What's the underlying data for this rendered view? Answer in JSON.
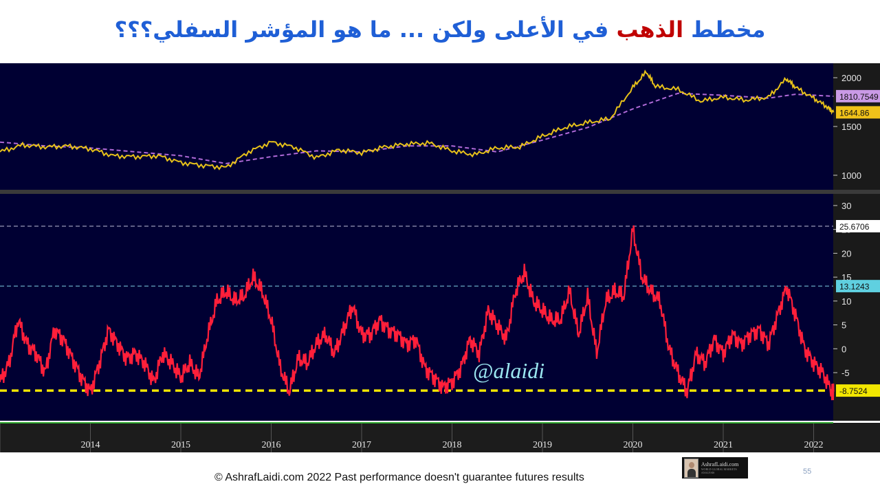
{
  "title": {
    "part1": "مخطط ",
    "part2": "الذهب",
    "part3": " في الأعلى ولكن ... ما هو المؤشر السفلي؟؟؟"
  },
  "footer": "© AshrafLaidi.com 2022 Past performance doesn't guarantee futures results",
  "page_number": "55",
  "logo_text": "AshrafLaidi.com",
  "colors": {
    "background": "#000033",
    "gold": "#e8c21a",
    "ma": "#b06ad8",
    "indicator": "#ff1f3a",
    "yellow_line": "#f2e600",
    "title_blue": "#1f5fd6",
    "title_red": "#c00000"
  },
  "chart_data": [
    {
      "type": "line",
      "title": "",
      "series": [
        {
          "name": "",
          "x": [
            2013.5,
            2013.75,
            2014.0,
            2014.25,
            2014.5,
            2014.75,
            2015.0,
            2015.25,
            2015.5,
            2015.75,
            2016.0,
            2016.25,
            2016.5,
            2016.75,
            2017.0,
            2017.25,
            2017.5,
            2017.75,
            2018.0,
            2018.25,
            2018.5,
            2018.75,
            2019.0,
            2019.25,
            2019.5,
            2019.75,
            2020.0,
            2020.25,
            2020.5,
            2020.65,
            2020.75,
            2021.0,
            2021.25,
            2021.5,
            2021.75,
            2022.0,
            2022.2,
            2022.3,
            2022.5,
            2022.65,
            2022.72
          ],
          "values": [
            1240,
            1310,
            1290,
            1300,
            1270,
            1200,
            1190,
            1200,
            1130,
            1100,
            1080,
            1240,
            1340,
            1290,
            1180,
            1260,
            1230,
            1290,
            1320,
            1330,
            1250,
            1210,
            1280,
            1290,
            1400,
            1490,
            1540,
            1580,
            1900,
            2060,
            1910,
            1880,
            1760,
            1800,
            1770,
            1800,
            1990,
            1900,
            1790,
            1700,
            1645
          ]
        },
        {
          "name": "",
          "x": [
            2013.5,
            2014.0,
            2014.5,
            2015.0,
            2015.5,
            2016.0,
            2016.5,
            2017.0,
            2017.5,
            2018.0,
            2018.5,
            2019.0,
            2019.5,
            2020.0,
            2020.5,
            2021.0,
            2021.5,
            2022.0,
            2022.3,
            2022.72
          ],
          "values": [
            1340,
            1300,
            1280,
            1240,
            1200,
            1120,
            1190,
            1250,
            1240,
            1300,
            1300,
            1240,
            1360,
            1490,
            1680,
            1840,
            1820,
            1790,
            1830,
            1810
          ]
        }
      ],
      "y_ticks": [
        "1000",
        "1500",
        "2000"
      ],
      "ylim": [
        950,
        2120
      ],
      "price_labels": [
        "1810.7549",
        "1644.86"
      ],
      "legend": "none",
      "grid": false
    },
    {
      "type": "line",
      "title": "",
      "series": [
        {
          "name": "",
          "x": [
            2013.5,
            2013.6,
            2013.7,
            2013.8,
            2013.9,
            2014.0,
            2014.1,
            2014.2,
            2014.3,
            2014.4,
            2014.5,
            2014.6,
            2014.7,
            2014.8,
            2014.9,
            2015.0,
            2015.1,
            2015.2,
            2015.3,
            2015.4,
            2015.5,
            2015.6,
            2015.7,
            2015.8,
            2015.9,
            2016.0,
            2016.1,
            2016.2,
            2016.3,
            2016.4,
            2016.5,
            2016.6,
            2016.7,
            2016.8,
            2016.9,
            2017.0,
            2017.1,
            2017.2,
            2017.3,
            2017.4,
            2017.5,
            2017.6,
            2017.7,
            2017.8,
            2017.9,
            2018.0,
            2018.1,
            2018.2,
            2018.3,
            2018.4,
            2018.5,
            2018.6,
            2018.7,
            2018.8,
            2018.9,
            2019.0,
            2019.1,
            2019.2,
            2019.3,
            2019.4,
            2019.5,
            2019.6,
            2019.7,
            2019.8,
            2019.9,
            2020.0,
            2020.1,
            2020.2,
            2020.3,
            2020.4,
            2020.5,
            2020.6,
            2020.7,
            2020.8,
            2020.9,
            2021.0,
            2021.1,
            2021.2,
            2021.3,
            2021.4,
            2021.5,
            2021.6,
            2021.7,
            2021.8,
            2021.9,
            2022.0,
            2022.1,
            2022.2,
            2022.3,
            2022.4,
            2022.5,
            2022.6,
            2022.7,
            2022.72
          ],
          "values": [
            -7,
            -3,
            6,
            1,
            -1,
            -5,
            4,
            2,
            -2,
            -6,
            -9,
            -3,
            4,
            1,
            -2,
            -1,
            -3,
            -7,
            -1,
            -3,
            -6,
            -3,
            -6,
            3,
            10,
            12,
            10,
            11,
            15,
            12,
            6,
            -4,
            -9,
            -2,
            -3,
            1,
            3,
            -1,
            4,
            9,
            3,
            3,
            6,
            4,
            3,
            1,
            2,
            -4,
            -6,
            -8,
            -7,
            -4,
            2,
            -1,
            8,
            5,
            2,
            12,
            16,
            10,
            8,
            6,
            6,
            12,
            3,
            11,
            -1,
            10,
            12,
            11,
            25,
            15,
            12,
            10,
            0,
            -5,
            -9,
            -1,
            -3,
            2,
            -1,
            3,
            1,
            3,
            4,
            1,
            7,
            13,
            7,
            0,
            -3,
            -5,
            -9,
            -9
          ],
          "color": "#ff1f3a"
        }
      ],
      "y_ticks": [
        "-5",
        "0",
        "5",
        "10",
        "15",
        "20",
        "25",
        "30"
      ],
      "ylim": [
        -14.5,
        31
      ],
      "reference_lines": [
        {
          "value": 25.6706,
          "label": "25.6706"
        },
        {
          "value": 13.1243,
          "label": "13.1243"
        },
        {
          "value": -8.7524,
          "label": "-8.7524"
        }
      ],
      "watermark": "@alaidi",
      "x_tick_labels": [
        "2014",
        "2015",
        "2016",
        "2017",
        "2018",
        "2019",
        "2020",
        "2021",
        "2022"
      ],
      "legend": "none",
      "grid": false
    }
  ]
}
